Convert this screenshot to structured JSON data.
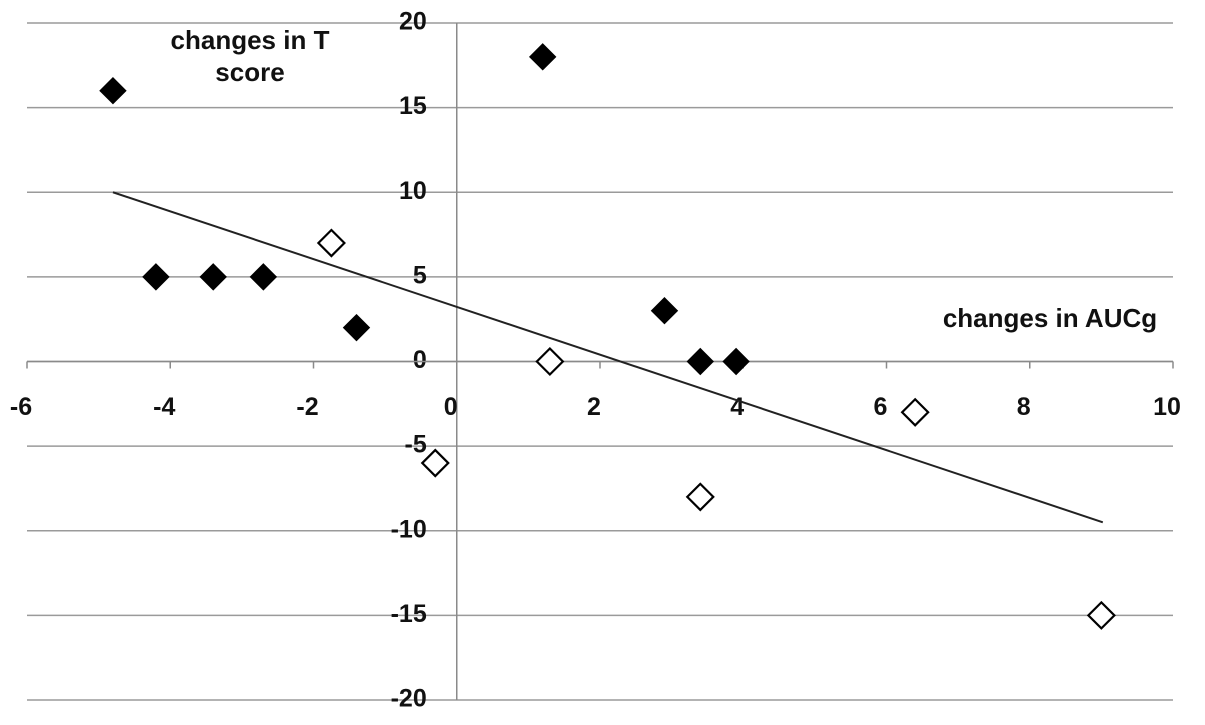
{
  "chart_data": {
    "type": "scatter",
    "x_label": "changes in AUCg",
    "y_label": "changes in T score",
    "xlim": [
      -6,
      10
    ],
    "xticks": [
      -6,
      -4,
      -2,
      0,
      2,
      4,
      6,
      8,
      10
    ],
    "ylim": [
      -20,
      20
    ],
    "yticks": [
      -20,
      -15,
      -10,
      -5,
      0,
      5,
      10,
      15,
      20
    ],
    "grid": true,
    "series": [
      {
        "color": "#000000",
        "marker": "filled-diamond",
        "x": [
          -4.8,
          -4.2,
          -3.4,
          -2.7,
          -1.4,
          1.2,
          2.9,
          3.4,
          3.9
        ],
        "values": [
          16,
          5,
          5,
          5,
          2,
          18,
          3,
          0,
          0
        ]
      },
      {
        "color": "#000000",
        "marker": "open-diamond",
        "x": [
          -1.75,
          1.3,
          -0.3,
          3.4,
          6.4,
          9.0
        ],
        "values": [
          7,
          0,
          -6,
          -8,
          -3,
          -15
        ]
      }
    ],
    "trendline": {
      "color": "#222222",
      "x": [
        -4.8,
        9.02
      ],
      "y": [
        10,
        -9.5
      ]
    }
  }
}
